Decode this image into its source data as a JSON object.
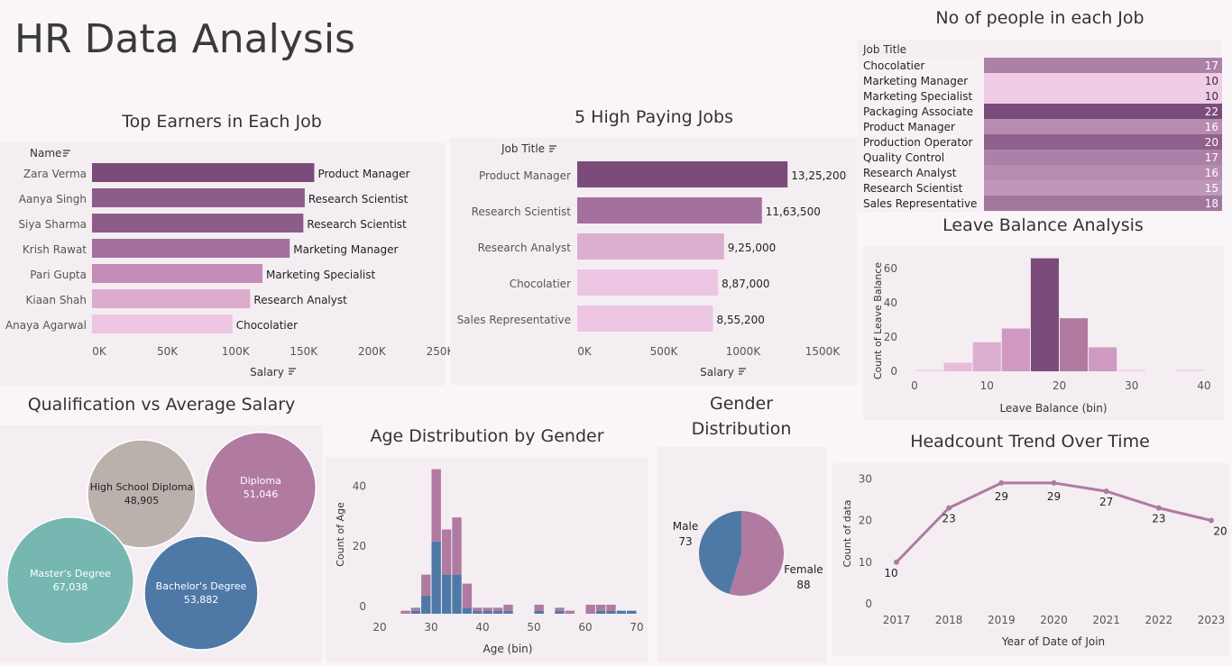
{
  "page_title": "HR Data Analysis",
  "colors": {
    "bar_dark": "#7b4c7a",
    "bar_mid": "#a4709d",
    "bar_light": "#d8a9cb",
    "bar_pale": "#ecc6e2",
    "blue": "#4e79a7",
    "pink": "#b07aa1",
    "teal": "#76b7b2",
    "grey": "#bab0ac"
  },
  "sort_icon": "sort-icon",
  "top_earners": {
    "title": "Top Earners in Each Job",
    "row_header": "Name",
    "axis_label": "Salary",
    "chart_data": {
      "type": "bar",
      "orientation": "horizontal",
      "categories": [
        "Zara Verma",
        "Aanya Singh",
        "Siya Sharma",
        "Krish Rawat",
        "Pari Gupta",
        "Kiaan Shah",
        "Anaya Agarwal"
      ],
      "values": [
        163000,
        156000,
        155000,
        145000,
        125000,
        116000,
        103000
      ],
      "labels": [
        "Product Manager",
        "Research Scientist",
        "Research Scientist",
        "Marketing Manager",
        "Marketing Specialist",
        "Research Analyst",
        "Chocolatier"
      ],
      "ticks": [
        "0K",
        "50K",
        "100K",
        "150K",
        "200K",
        "250K"
      ],
      "xlim": [
        0,
        250000
      ]
    }
  },
  "high_paying": {
    "title": "5 High Paying Jobs",
    "row_header": "Job Title",
    "axis_label": "Salary",
    "chart_data": {
      "type": "bar",
      "orientation": "horizontal",
      "categories": [
        "Product Manager",
        "Research Scientist",
        "Research Analyst",
        "Chocolatier",
        "Sales Representative"
      ],
      "values": [
        1325200,
        1163500,
        925000,
        887000,
        855200
      ],
      "value_labels": [
        "13,25,200",
        "11,63,500",
        "9,25,000",
        "8,87,000",
        "8,55,200"
      ],
      "ticks": [
        "0K",
        "500K",
        "1000K",
        "1500K"
      ],
      "xlim": [
        0,
        1500000
      ]
    }
  },
  "people_per_job": {
    "title": "No of people in each Job",
    "header": "Job Title",
    "chart_data": {
      "type": "table",
      "categories": [
        "Chocolatier",
        "Marketing Manager",
        "Marketing Specialist",
        "Packaging Associate",
        "Product Manager",
        "Production Operator",
        "Quality Control",
        "Research Analyst",
        "Research Scientist",
        "Sales Representative"
      ],
      "values": [
        17,
        10,
        10,
        22,
        16,
        20,
        17,
        16,
        15,
        18
      ]
    }
  },
  "leave_balance": {
    "title": "Leave Balance Analysis",
    "xlabel": "Leave Balance (bin)",
    "ylabel": "Count of Leave Balance",
    "chart_data": {
      "type": "bar",
      "bins": [
        0,
        4,
        8,
        12,
        16,
        20,
        24,
        28,
        32,
        36
      ],
      "values": [
        1,
        5,
        17,
        25,
        66,
        31,
        14,
        1,
        0,
        1
      ],
      "xticks": [
        "0",
        "10",
        "20",
        "30",
        "40"
      ],
      "yticks": [
        "0",
        "20",
        "40",
        "60"
      ],
      "xlim": [
        0,
        40
      ],
      "ylim": [
        0,
        70
      ]
    }
  },
  "qualification": {
    "title": "Qualification vs Average Salary",
    "chart_data": {
      "type": "bubble",
      "items": [
        {
          "name": "High School Diploma",
          "label": "48,905",
          "value": 48905,
          "color": "#bab0ac"
        },
        {
          "name": "Diploma",
          "label": "51,046",
          "value": 51046,
          "color": "#b07aa1"
        },
        {
          "name": "Master's Degree",
          "label": "67,038",
          "value": 67038,
          "color": "#76b7b2"
        },
        {
          "name": "Bachelor's Degree",
          "label": "53,882",
          "value": 53882,
          "color": "#4e79a7"
        }
      ]
    }
  },
  "age_dist": {
    "title": "Age Distribution by Gender",
    "xlabel": "Age (bin)",
    "ylabel": "Count of Age",
    "chart_data": {
      "type": "bar",
      "stacked": true,
      "bins": [
        20,
        22,
        24,
        26,
        28,
        30,
        32,
        34,
        36,
        38,
        40,
        42,
        44,
        46,
        48,
        50,
        52,
        54,
        56,
        58,
        60,
        62,
        64,
        66,
        68
      ],
      "series": [
        {
          "name": "Male",
          "values": [
            0,
            0,
            0,
            1,
            6,
            24,
            13,
            13,
            2,
            1,
            1,
            1,
            1,
            0,
            0,
            1,
            0,
            1,
            0,
            0,
            0,
            1,
            1,
            1,
            1
          ]
        },
        {
          "name": "Female",
          "values": [
            0,
            0,
            1,
            1,
            7,
            24,
            15,
            19,
            8,
            1,
            1,
            1,
            2,
            0,
            0,
            2,
            0,
            1,
            1,
            0,
            3,
            2,
            2,
            0,
            0
          ]
        }
      ],
      "xticks": [
        "20",
        "30",
        "40",
        "50",
        "60",
        "70"
      ],
      "yticks": [
        "0",
        "20",
        "40"
      ],
      "xlim": [
        20,
        70
      ],
      "ylim": [
        0,
        50
      ]
    }
  },
  "gender": {
    "title_line1": "Gender",
    "title_line2": "Distribution",
    "chart_data": {
      "type": "pie",
      "slices": [
        {
          "name": "Male",
          "value": 73,
          "color": "#4e79a7"
        },
        {
          "name": "Female",
          "value": 88,
          "color": "#b07aa1"
        }
      ]
    }
  },
  "headcount": {
    "title": "Headcount Trend Over Time",
    "xlabel": "Year of Date of Join",
    "ylabel": "Count of data",
    "chart_data": {
      "type": "line",
      "x": [
        "2017",
        "2018",
        "2019",
        "2020",
        "2021",
        "2022",
        "2023"
      ],
      "values": [
        10,
        23,
        29,
        29,
        27,
        23,
        20
      ],
      "yticks": [
        "0",
        "10",
        "20",
        "30"
      ],
      "ylim": [
        0,
        32
      ]
    }
  }
}
